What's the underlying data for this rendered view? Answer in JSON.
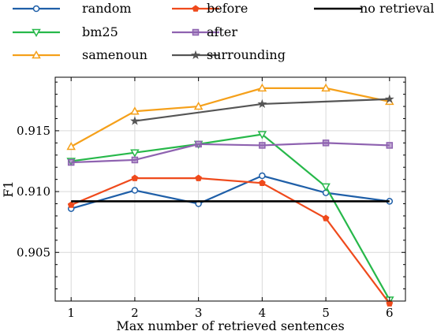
{
  "chart_data": {
    "type": "line",
    "xlabel": "Max number of retrieved sentences",
    "ylabel": "F1",
    "xlim": [
      0.75,
      6.25
    ],
    "ylim": [
      0.901,
      0.9194
    ],
    "xticks": [
      1,
      2,
      3,
      4,
      5,
      6
    ],
    "yticks": [
      0.905,
      0.91,
      0.915
    ],
    "ytick_labels": [
      "0.905",
      "0.910",
      "0.915"
    ],
    "grid": true,
    "legend_position": "above plot",
    "series": [
      {
        "name": "random",
        "color": "#1f5fa8",
        "marker": "circle",
        "x": [
          1,
          2,
          3,
          4,
          5,
          6
        ],
        "y": [
          0.9086,
          0.9101,
          0.909,
          0.9113,
          0.9099,
          0.9092
        ]
      },
      {
        "name": "bm25",
        "color": "#27b84a",
        "marker": "triangle-down",
        "x": [
          1,
          2,
          3,
          4,
          5,
          6
        ],
        "y": [
          0.9125,
          0.9132,
          0.9139,
          0.9147,
          0.9104,
          0.9011
        ]
      },
      {
        "name": "samenoun",
        "color": "#f5a01a",
        "marker": "triangle-up",
        "x": [
          1,
          2,
          3,
          4,
          5,
          6
        ],
        "y": [
          0.9137,
          0.9166,
          0.917,
          0.9185,
          0.9185,
          0.9174
        ]
      },
      {
        "name": "before",
        "color": "#ef4a1c",
        "marker": "pentagon",
        "x": [
          1,
          2,
          3,
          4,
          5,
          6
        ],
        "y": [
          0.9089,
          0.9111,
          0.9111,
          0.9107,
          0.9078,
          0.9008
        ]
      },
      {
        "name": "after",
        "color": "#8e62b0",
        "marker": "square",
        "x": [
          1,
          2,
          3,
          4,
          5,
          6
        ],
        "y": [
          0.9124,
          0.9126,
          0.9139,
          0.9138,
          0.914,
          0.9138
        ]
      },
      {
        "name": "surrounding",
        "color": "#555555",
        "marker": "star",
        "x": [
          2,
          4,
          6
        ],
        "y": [
          0.9158,
          0.9172,
          0.9176
        ]
      },
      {
        "name": "no retrieval",
        "color": "#000000",
        "marker": "none",
        "x": [
          1,
          6
        ],
        "y": [
          0.9092,
          0.9092
        ]
      }
    ]
  }
}
